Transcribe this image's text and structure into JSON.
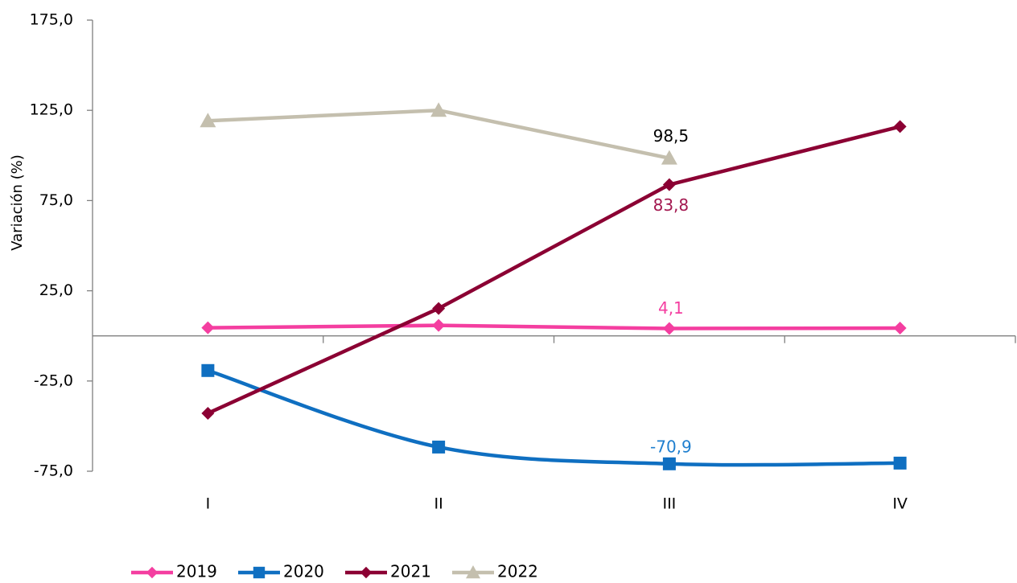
{
  "chart_data": {
    "type": "line",
    "y_label": "Variación (%)",
    "categories": [
      "I",
      "II",
      "III",
      "IV"
    ],
    "ylim": [
      -75,
      175
    ],
    "yticks": [
      {
        "value": -75,
        "label": "-75,0"
      },
      {
        "value": -25,
        "label": "-25,0"
      },
      {
        "value": 25,
        "label": "25,0"
      },
      {
        "value": 75,
        "label": "75,0"
      },
      {
        "value": 125,
        "label": "125,0"
      },
      {
        "value": 175,
        "label": "175,0"
      }
    ],
    "grid": false,
    "legend": "bottom",
    "series": [
      {
        "name": "2019",
        "color": "#f43ea0",
        "marker": "diamond",
        "label_color": "#f43ea0",
        "values": [
          4.5,
          5.8,
          4.1,
          4.3
        ],
        "value_labels": [
          null,
          null,
          "4,1",
          null
        ]
      },
      {
        "name": "2020",
        "color": "#0f6fc1",
        "marker": "square",
        "smooth": true,
        "label_color": "#1f7fcf",
        "values": [
          -19.2,
          -61.6,
          -70.9,
          -70.5
        ],
        "value_labels": [
          null,
          null,
          "-70,9",
          null
        ]
      },
      {
        "name": "2021",
        "color": "#8b0033",
        "marker": "diamond",
        "label_color": "#a3174f",
        "values": [
          -42.9,
          15.2,
          83.8,
          116
        ],
        "value_labels": [
          null,
          null,
          "83,8",
          null
        ]
      },
      {
        "name": "2022",
        "color": "#c4bfae",
        "marker": "triangle",
        "label_color": "#000000",
        "values": [
          119.2,
          125,
          98.5,
          null
        ],
        "value_labels": [
          null,
          null,
          "98,5",
          null
        ]
      }
    ]
  }
}
